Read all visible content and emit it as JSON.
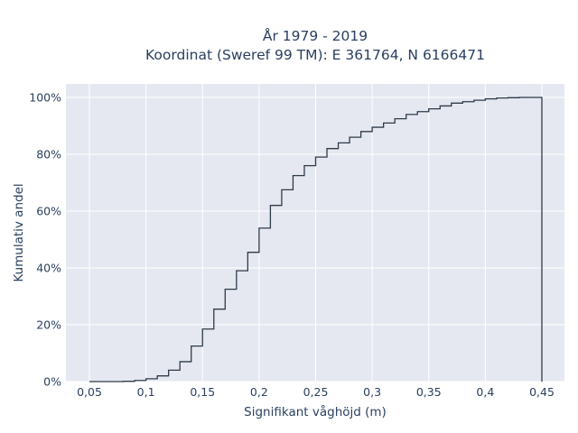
{
  "chart_data": {
    "type": "line",
    "subtype": "step-ecdf",
    "title_line1": "År 1979 - 2019",
    "title_line2": "Koordinat (Sweref 99 TM): E 361764, N 6166471",
    "xlabel": "Signifikant våghöjd (m)",
    "ylabel": "Kumulativ andel",
    "xlim": [
      0.03,
      0.47
    ],
    "ylim": [
      0,
      1.05
    ],
    "grid": true,
    "legend": false,
    "colors": {
      "plot_background": "#e5e8f0",
      "grid": "#ffffff",
      "line": "#2f3b4a",
      "text": "#2a3f5f"
    },
    "x_ticks": [
      {
        "value": 0.05,
        "label": "0,05"
      },
      {
        "value": 0.1,
        "label": "0,1"
      },
      {
        "value": 0.15,
        "label": "0,15"
      },
      {
        "value": 0.2,
        "label": "0,2"
      },
      {
        "value": 0.25,
        "label": "0,25"
      },
      {
        "value": 0.3,
        "label": "0,3"
      },
      {
        "value": 0.35,
        "label": "0,35"
      },
      {
        "value": 0.4,
        "label": "0,4"
      },
      {
        "value": 0.45,
        "label": "0,45"
      }
    ],
    "y_ticks": [
      {
        "value": 0,
        "label": "0%"
      },
      {
        "value": 0.2,
        "label": "20%"
      },
      {
        "value": 0.4,
        "label": "40%"
      },
      {
        "value": 0.6,
        "label": "60%"
      },
      {
        "value": 0.8,
        "label": "80%"
      },
      {
        "value": 1.0,
        "label": "100%"
      }
    ],
    "series": [
      {
        "x": [
          0.05,
          0.06,
          0.07,
          0.08,
          0.09,
          0.1,
          0.11,
          0.12,
          0.13,
          0.14,
          0.15,
          0.16,
          0.17,
          0.18,
          0.19,
          0.2,
          0.21,
          0.22,
          0.23,
          0.24,
          0.25,
          0.26,
          0.27,
          0.28,
          0.29,
          0.3,
          0.31,
          0.32,
          0.33,
          0.34,
          0.35,
          0.36,
          0.37,
          0.38,
          0.39,
          0.4,
          0.41,
          0.42,
          0.43,
          0.44,
          0.45
        ],
        "y": [
          0.0,
          0.0,
          0.0,
          0.001,
          0.004,
          0.01,
          0.02,
          0.04,
          0.07,
          0.125,
          0.185,
          0.255,
          0.325,
          0.39,
          0.455,
          0.54,
          0.62,
          0.675,
          0.725,
          0.76,
          0.79,
          0.82,
          0.84,
          0.86,
          0.88,
          0.895,
          0.91,
          0.925,
          0.94,
          0.95,
          0.96,
          0.97,
          0.98,
          0.985,
          0.99,
          0.995,
          0.998,
          0.999,
          1.0,
          1.0,
          1.0
        ]
      }
    ]
  }
}
